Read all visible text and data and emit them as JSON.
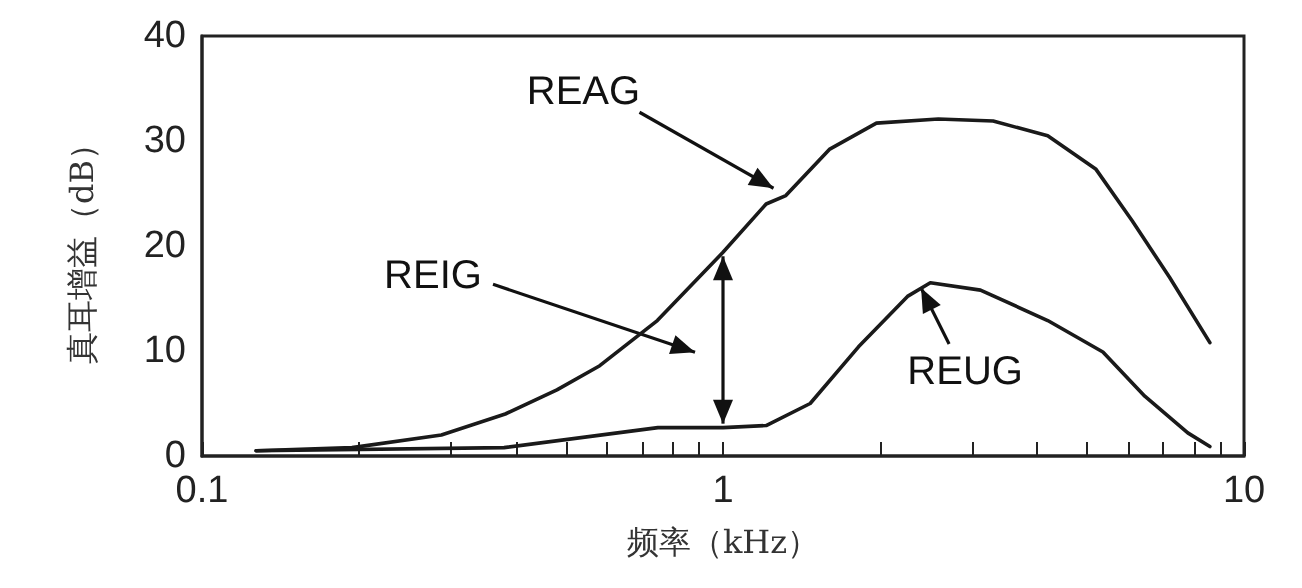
{
  "chart_data": {
    "type": "line",
    "xlabel": "频率（kHz）",
    "ylabel": "真耳增益（dB）",
    "log": "x",
    "grid": false,
    "marker": "none",
    "line_style": "solid",
    "xlim": [
      0.1,
      10
    ],
    "xticks": [
      0.1,
      {
        "value": 0.2,
        "label": null
      },
      {
        "value": 0.3,
        "label": null
      },
      {
        "value": 0.4,
        "label": null
      },
      {
        "value": 0.5,
        "label": null
      },
      {
        "value": 0.6,
        "label": null
      },
      {
        "value": 0.7,
        "label": null
      },
      {
        "value": 0.8,
        "label": null
      },
      {
        "value": 0.9,
        "label": null
      },
      1,
      {
        "value": 2,
        "label": null
      },
      {
        "value": 3,
        "label": null
      },
      {
        "value": 4,
        "label": null
      },
      {
        "value": 5,
        "label": null
      },
      {
        "value": 6,
        "label": null
      },
      {
        "value": 7,
        "label": null
      },
      {
        "value": 8,
        "label": null
      },
      {
        "value": 9,
        "label": null
      },
      10
    ],
    "ylim": [
      0,
      40
    ],
    "yticks": [
      0,
      10,
      20,
      30,
      40
    ],
    "series": [
      {
        "color": "#1a1a1a",
        "x": [
          0.127,
          0.194,
          0.288,
          0.382,
          0.48,
          0.58,
          0.748,
          1,
          1.21,
          1.32,
          1.6,
          1.97,
          2.59,
          3.3,
          4.2,
          5.2,
          6.1,
          7.2,
          8.6
        ],
        "values": [
          0.5,
          0.8,
          2,
          4,
          6.3,
          8.6,
          12.9,
          19.4,
          24,
          24.8,
          29.2,
          31.7,
          32.1,
          31.9,
          30.5,
          27.3,
          22.4,
          17,
          10.8
        ]
      },
      {
        "color": "#1a1a1a",
        "x": [
          0.127,
          0.38,
          0.75,
          1,
          1.21,
          1.47,
          1.82,
          2.26,
          2.5,
          3.12,
          4.2,
          5.36,
          6.45,
          7.8,
          8.6
        ],
        "values": [
          0.5,
          0.8,
          2.7,
          2.7,
          2.9,
          5,
          10.4,
          15.2,
          16.5,
          15.8,
          12.9,
          9.9,
          5.7,
          2.2,
          0.9
        ]
      }
    ],
    "annotations": [
      {
        "text": "REAG",
        "x": 1.25,
        "y": 25.5
      },
      "REIG",
      {
        "text": "REUG",
        "x": 2.4,
        "y": 16
      }
    ]
  }
}
